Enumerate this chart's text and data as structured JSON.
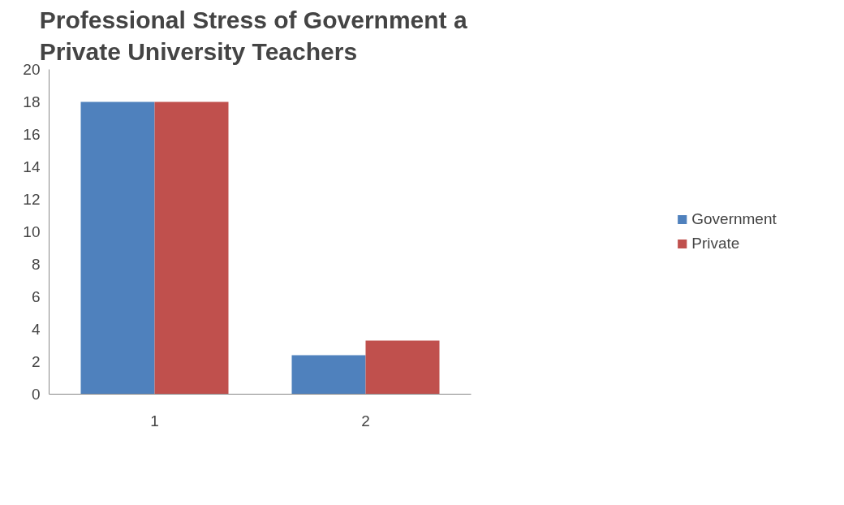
{
  "chart_data": {
    "type": "bar",
    "title": "Professional Stress of Government   a\nPrivate University Teachers",
    "categories": [
      "1",
      "2"
    ],
    "series": [
      {
        "name": "Government",
        "color": "#4f81bd",
        "values": [
          18,
          2.4
        ]
      },
      {
        "name": "Private",
        "color": "#c0504d",
        "values": [
          18,
          3.3
        ]
      }
    ],
    "ylim": [
      0,
      20
    ],
    "yticks": [
      0,
      2,
      4,
      6,
      8,
      10,
      12,
      14,
      16,
      18,
      20
    ],
    "grid": false,
    "legend": "right"
  }
}
